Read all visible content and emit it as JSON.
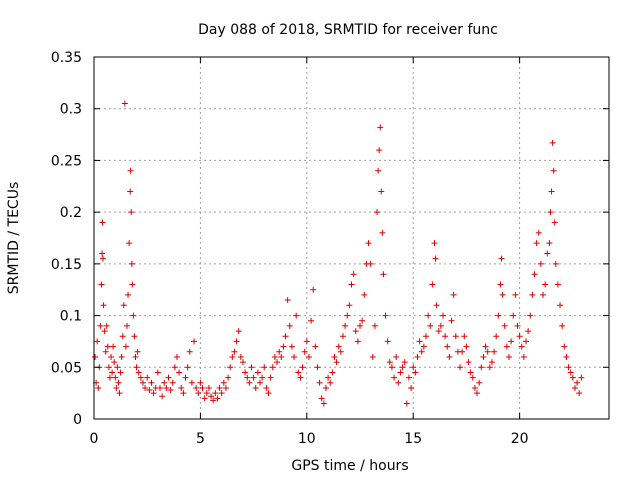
{
  "chart_data": {
    "type": "scatter",
    "title": "Day 088 of 2018, SRMTID for receiver func",
    "xlabel": "GPS time / hours",
    "ylabel": "SRMTID / TECUs",
    "xlim": [
      0,
      24.2
    ],
    "ylim": [
      0,
      0.35
    ],
    "xticks": [
      0,
      5,
      10,
      15,
      20
    ],
    "xtick_labels": [
      "0",
      "5",
      "10",
      "15",
      "20"
    ],
    "yticks": [
      0,
      0.05,
      0.1,
      0.15,
      0.2,
      0.25,
      0.3,
      0.35
    ],
    "ytick_labels": [
      "0",
      "0.05",
      "0.1",
      "0.15",
      "0.2",
      "0.25",
      "0.3",
      "0.35"
    ],
    "grid": true,
    "marker": "+",
    "color": "#e00000",
    "series": [
      {
        "name": "SRMTID",
        "points": [
          [
            0.05,
            0.06
          ],
          [
            0.1,
            0.035
          ],
          [
            0.15,
            0.075
          ],
          [
            0.2,
            0.03
          ],
          [
            0.25,
            0.05
          ],
          [
            0.3,
            0.09
          ],
          [
            0.35,
            0.13
          ],
          [
            0.38,
            0.16
          ],
          [
            0.4,
            0.19
          ],
          [
            0.42,
            0.155
          ],
          [
            0.45,
            0.11
          ],
          [
            0.5,
            0.085
          ],
          [
            0.55,
            0.065
          ],
          [
            0.6,
            0.09
          ],
          [
            0.65,
            0.07
          ],
          [
            0.7,
            0.05
          ],
          [
            0.75,
            0.04
          ],
          [
            0.8,
            0.06
          ],
          [
            0.85,
            0.045
          ],
          [
            0.9,
            0.07
          ],
          [
            0.95,
            0.055
          ],
          [
            1.0,
            0.04
          ],
          [
            1.05,
            0.03
          ],
          [
            1.1,
            0.05
          ],
          [
            1.15,
            0.035
          ],
          [
            1.2,
            0.025
          ],
          [
            1.25,
            0.045
          ],
          [
            1.3,
            0.06
          ],
          [
            1.35,
            0.08
          ],
          [
            1.4,
            0.11
          ],
          [
            1.45,
            0.305
          ],
          [
            1.5,
            0.07
          ],
          [
            1.55,
            0.09
          ],
          [
            1.6,
            0.12
          ],
          [
            1.65,
            0.17
          ],
          [
            1.7,
            0.22
          ],
          [
            1.72,
            0.24
          ],
          [
            1.75,
            0.2
          ],
          [
            1.78,
            0.15
          ],
          [
            1.8,
            0.13
          ],
          [
            1.85,
            0.1
          ],
          [
            1.9,
            0.08
          ],
          [
            1.95,
            0.06
          ],
          [
            2.0,
            0.05
          ],
          [
            2.05,
            0.065
          ],
          [
            2.1,
            0.045
          ],
          [
            2.2,
            0.04
          ],
          [
            2.3,
            0.035
          ],
          [
            2.4,
            0.03
          ],
          [
            2.5,
            0.04
          ],
          [
            2.6,
            0.028
          ],
          [
            2.7,
            0.035
          ],
          [
            2.8,
            0.025
          ],
          [
            2.9,
            0.03
          ],
          [
            3.0,
            0.045
          ],
          [
            3.1,
            0.03
          ],
          [
            3.2,
            0.022
          ],
          [
            3.3,
            0.035
          ],
          [
            3.4,
            0.03
          ],
          [
            3.5,
            0.04
          ],
          [
            3.6,
            0.028
          ],
          [
            3.7,
            0.035
          ],
          [
            3.8,
            0.05
          ],
          [
            3.9,
            0.06
          ],
          [
            4.0,
            0.045
          ],
          [
            4.1,
            0.03
          ],
          [
            4.2,
            0.025
          ],
          [
            4.3,
            0.04
          ],
          [
            4.4,
            0.05
          ],
          [
            4.5,
            0.065
          ],
          [
            4.6,
            0.035
          ],
          [
            4.7,
            0.075
          ],
          [
            4.8,
            0.03
          ],
          [
            4.9,
            0.025
          ],
          [
            5.0,
            0.035
          ],
          [
            5.1,
            0.03
          ],
          [
            5.2,
            0.02
          ],
          [
            5.3,
            0.025
          ],
          [
            5.4,
            0.03
          ],
          [
            5.5,
            0.022
          ],
          [
            5.6,
            0.018
          ],
          [
            5.7,
            0.025
          ],
          [
            5.8,
            0.02
          ],
          [
            5.9,
            0.03
          ],
          [
            6.0,
            0.025
          ],
          [
            6.1,
            0.035
          ],
          [
            6.2,
            0.03
          ],
          [
            6.3,
            0.04
          ],
          [
            6.4,
            0.05
          ],
          [
            6.5,
            0.06
          ],
          [
            6.6,
            0.065
          ],
          [
            6.7,
            0.075
          ],
          [
            6.8,
            0.085
          ],
          [
            6.9,
            0.06
          ],
          [
            7.0,
            0.055
          ],
          [
            7.1,
            0.045
          ],
          [
            7.2,
            0.04
          ],
          [
            7.3,
            0.035
          ],
          [
            7.4,
            0.05
          ],
          [
            7.5,
            0.04
          ],
          [
            7.6,
            0.03
          ],
          [
            7.7,
            0.045
          ],
          [
            7.8,
            0.035
          ],
          [
            7.9,
            0.04
          ],
          [
            8.0,
            0.05
          ],
          [
            8.1,
            0.03
          ],
          [
            8.2,
            0.025
          ],
          [
            8.3,
            0.04
          ],
          [
            8.4,
            0.05
          ],
          [
            8.5,
            0.06
          ],
          [
            8.6,
            0.055
          ],
          [
            8.7,
            0.065
          ],
          [
            8.8,
            0.06
          ],
          [
            8.9,
            0.07
          ],
          [
            9.0,
            0.08
          ],
          [
            9.1,
            0.115
          ],
          [
            9.2,
            0.09
          ],
          [
            9.3,
            0.07
          ],
          [
            9.4,
            0.06
          ],
          [
            9.5,
            0.1
          ],
          [
            9.6,
            0.045
          ],
          [
            9.7,
            0.04
          ],
          [
            9.8,
            0.05
          ],
          [
            9.9,
            0.065
          ],
          [
            10.0,
            0.075
          ],
          [
            10.1,
            0.06
          ],
          [
            10.2,
            0.095
          ],
          [
            10.3,
            0.125
          ],
          [
            10.4,
            0.07
          ],
          [
            10.5,
            0.05
          ],
          [
            10.6,
            0.035
          ],
          [
            10.7,
            0.02
          ],
          [
            10.8,
            0.015
          ],
          [
            10.9,
            0.03
          ],
          [
            11.0,
            0.04
          ],
          [
            11.1,
            0.035
          ],
          [
            11.2,
            0.045
          ],
          [
            11.3,
            0.06
          ],
          [
            11.4,
            0.055
          ],
          [
            11.5,
            0.07
          ],
          [
            11.6,
            0.065
          ],
          [
            11.7,
            0.08
          ],
          [
            11.8,
            0.09
          ],
          [
            11.9,
            0.1
          ],
          [
            12.0,
            0.11
          ],
          [
            12.1,
            0.13
          ],
          [
            12.2,
            0.14
          ],
          [
            12.3,
            0.085
          ],
          [
            12.4,
            0.075
          ],
          [
            12.5,
            0.09
          ],
          [
            12.6,
            0.095
          ],
          [
            12.7,
            0.12
          ],
          [
            12.8,
            0.15
          ],
          [
            12.9,
            0.17
          ],
          [
            13.0,
            0.15
          ],
          [
            13.1,
            0.06
          ],
          [
            13.2,
            0.09
          ],
          [
            13.3,
            0.2
          ],
          [
            13.35,
            0.24
          ],
          [
            13.4,
            0.26
          ],
          [
            13.45,
            0.282
          ],
          [
            13.5,
            0.22
          ],
          [
            13.55,
            0.18
          ],
          [
            13.6,
            0.14
          ],
          [
            13.7,
            0.1
          ],
          [
            13.8,
            0.075
          ],
          [
            13.9,
            0.055
          ],
          [
            14.0,
            0.05
          ],
          [
            14.1,
            0.04
          ],
          [
            14.2,
            0.06
          ],
          [
            14.3,
            0.035
          ],
          [
            14.4,
            0.045
          ],
          [
            14.5,
            0.05
          ],
          [
            14.6,
            0.055
          ],
          [
            14.7,
            0.015
          ],
          [
            14.8,
            0.04
          ],
          [
            14.9,
            0.03
          ],
          [
            15.0,
            0.05
          ],
          [
            15.1,
            0.045
          ],
          [
            15.2,
            0.06
          ],
          [
            15.3,
            0.075
          ],
          [
            15.4,
            0.065
          ],
          [
            15.5,
            0.07
          ],
          [
            15.6,
            0.08
          ],
          [
            15.7,
            0.1
          ],
          [
            15.8,
            0.09
          ],
          [
            15.9,
            0.13
          ],
          [
            16.0,
            0.17
          ],
          [
            16.05,
            0.155
          ],
          [
            16.1,
            0.11
          ],
          [
            16.2,
            0.085
          ],
          [
            16.3,
            0.09
          ],
          [
            16.4,
            0.1
          ],
          [
            16.5,
            0.08
          ],
          [
            16.6,
            0.07
          ],
          [
            16.7,
            0.06
          ],
          [
            16.8,
            0.095
          ],
          [
            16.9,
            0.12
          ],
          [
            17.0,
            0.08
          ],
          [
            17.1,
            0.065
          ],
          [
            17.2,
            0.05
          ],
          [
            17.3,
            0.065
          ],
          [
            17.4,
            0.08
          ],
          [
            17.5,
            0.07
          ],
          [
            17.6,
            0.055
          ],
          [
            17.7,
            0.045
          ],
          [
            17.8,
            0.04
          ],
          [
            17.9,
            0.03
          ],
          [
            18.0,
            0.025
          ],
          [
            18.1,
            0.035
          ],
          [
            18.2,
            0.05
          ],
          [
            18.3,
            0.06
          ],
          [
            18.4,
            0.07
          ],
          [
            18.5,
            0.065
          ],
          [
            18.6,
            0.05
          ],
          [
            18.7,
            0.055
          ],
          [
            18.8,
            0.065
          ],
          [
            18.9,
            0.08
          ],
          [
            19.0,
            0.1
          ],
          [
            19.1,
            0.13
          ],
          [
            19.15,
            0.155
          ],
          [
            19.2,
            0.12
          ],
          [
            19.3,
            0.09
          ],
          [
            19.4,
            0.07
          ],
          [
            19.5,
            0.06
          ],
          [
            19.6,
            0.075
          ],
          [
            19.7,
            0.1
          ],
          [
            19.8,
            0.12
          ],
          [
            19.9,
            0.09
          ],
          [
            20.0,
            0.08
          ],
          [
            20.1,
            0.07
          ],
          [
            20.2,
            0.06
          ],
          [
            20.3,
            0.075
          ],
          [
            20.4,
            0.085
          ],
          [
            20.5,
            0.1
          ],
          [
            20.6,
            0.12
          ],
          [
            20.7,
            0.14
          ],
          [
            20.8,
            0.17
          ],
          [
            20.9,
            0.18
          ],
          [
            21.0,
            0.15
          ],
          [
            21.1,
            0.12
          ],
          [
            21.2,
            0.13
          ],
          [
            21.3,
            0.16
          ],
          [
            21.4,
            0.17
          ],
          [
            21.45,
            0.2
          ],
          [
            21.5,
            0.22
          ],
          [
            21.55,
            0.267
          ],
          [
            21.6,
            0.24
          ],
          [
            21.65,
            0.19
          ],
          [
            21.7,
            0.15
          ],
          [
            21.8,
            0.13
          ],
          [
            21.9,
            0.11
          ],
          [
            22.0,
            0.09
          ],
          [
            22.1,
            0.07
          ],
          [
            22.2,
            0.06
          ],
          [
            22.3,
            0.05
          ],
          [
            22.4,
            0.045
          ],
          [
            22.5,
            0.04
          ],
          [
            22.6,
            0.03
          ],
          [
            22.7,
            0.035
          ],
          [
            22.8,
            0.025
          ],
          [
            22.9,
            0.04
          ]
        ]
      }
    ]
  }
}
